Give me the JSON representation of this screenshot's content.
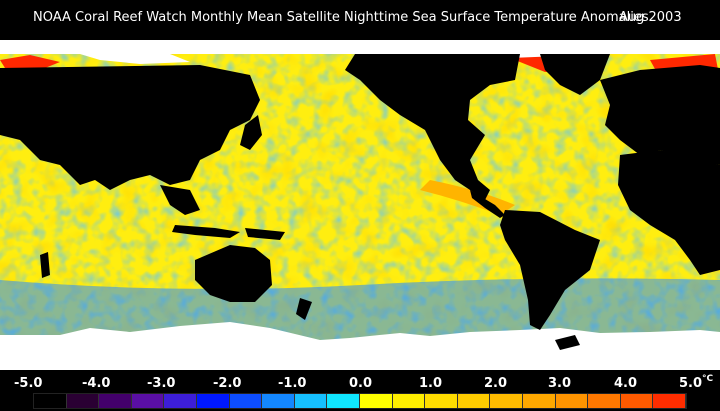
{
  "header": {
    "title": "NOAA Coral Reef Watch Monthly Mean Satellite Nighttime Sea Surface Temperature Anomalies",
    "date": "Aug 2003"
  },
  "legend": {
    "labels": [
      "-5.0",
      "-4.0",
      "-3.0",
      "-2.0",
      "-1.0",
      "0.0",
      "1.0",
      "2.0",
      "3.0",
      "4.0",
      "5.0"
    ],
    "unit": "°C",
    "colors": [
      "#000000",
      "#2a0033",
      "#43006b",
      "#5a0fa5",
      "#3d1ed8",
      "#0018ff",
      "#0d4dff",
      "#1487ff",
      "#16c0ff",
      "#10e6ff",
      "#ffff00",
      "#ffee00",
      "#ffdc00",
      "#ffcc00",
      "#ffbb00",
      "#ffa800",
      "#ff9400",
      "#ff7800",
      "#ff5a00",
      "#ff2d00"
    ]
  },
  "map": {
    "colors": {
      "land": "#000000",
      "ice": "#ffffff",
      "near_zero": "#ffee10",
      "warm": "#ffb400",
      "cool": "#2a8cff",
      "hot": "#ff2800"
    }
  }
}
